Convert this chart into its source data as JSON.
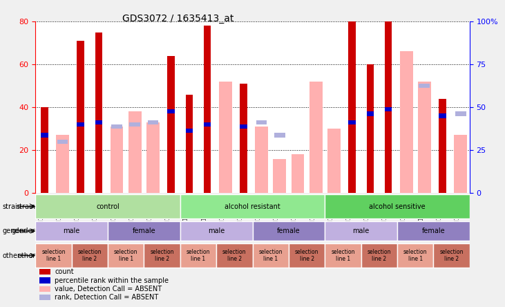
{
  "title": "GDS3072 / 1635413_at",
  "samples": [
    "GSM183815",
    "GSM183816",
    "GSM183990",
    "GSM183991",
    "GSM183817",
    "GSM183856",
    "GSM183992",
    "GSM183993",
    "GSM183887",
    "GSM183888",
    "GSM184121",
    "GSM184122",
    "GSM183936",
    "GSM183989",
    "GSM184123",
    "GSM184124",
    "GSM183857",
    "GSM183858",
    "GSM183994",
    "GSM184118",
    "GSM183875",
    "GSM183886",
    "GSM184119",
    "GSM184120"
  ],
  "count": [
    40,
    0,
    71,
    75,
    0,
    0,
    0,
    64,
    46,
    78,
    0,
    51,
    0,
    0,
    0,
    0,
    0,
    80,
    60,
    83,
    0,
    0,
    44,
    0
  ],
  "rank": [
    27,
    0,
    32,
    33,
    0,
    0,
    0,
    38,
    29,
    32,
    0,
    31,
    0,
    0,
    0,
    0,
    0,
    33,
    37,
    39,
    0,
    0,
    36,
    0
  ],
  "value_absent": [
    0,
    27,
    0,
    0,
    31,
    38,
    33,
    0,
    0,
    0,
    52,
    0,
    31,
    16,
    18,
    52,
    30,
    0,
    0,
    0,
    66,
    52,
    0,
    27
  ],
  "rank_absent": [
    0,
    24,
    0,
    0,
    31,
    32,
    33,
    0,
    0,
    0,
    0,
    0,
    33,
    27,
    0,
    0,
    0,
    0,
    0,
    0,
    0,
    50,
    0,
    37
  ],
  "strain_groups": [
    {
      "label": "control",
      "start": 0,
      "end": 7,
      "color": "#b0e0a0"
    },
    {
      "label": "alcohol resistant",
      "start": 8,
      "end": 15,
      "color": "#90e890"
    },
    {
      "label": "alcohol sensitive",
      "start": 16,
      "end": 23,
      "color": "#60d060"
    }
  ],
  "gender_groups": [
    {
      "label": "male",
      "start": 0,
      "end": 3,
      "color": "#c0b0e0"
    },
    {
      "label": "female",
      "start": 4,
      "end": 7,
      "color": "#9080c0"
    },
    {
      "label": "male",
      "start": 8,
      "end": 11,
      "color": "#c0b0e0"
    },
    {
      "label": "female",
      "start": 12,
      "end": 15,
      "color": "#9080c0"
    },
    {
      "label": "male",
      "start": 16,
      "end": 19,
      "color": "#c0b0e0"
    },
    {
      "label": "female",
      "start": 20,
      "end": 23,
      "color": "#9080c0"
    }
  ],
  "other_groups": [
    {
      "label": "selection\nline 1",
      "start": 0,
      "end": 1,
      "color": "#e8a090"
    },
    {
      "label": "selection\nline 2",
      "start": 2,
      "end": 3,
      "color": "#c87060"
    },
    {
      "label": "selection\nline 1",
      "start": 4,
      "end": 5,
      "color": "#e8a090"
    },
    {
      "label": "selection\nline 2",
      "start": 6,
      "end": 7,
      "color": "#c87060"
    },
    {
      "label": "selection\nline 1",
      "start": 8,
      "end": 9,
      "color": "#e8a090"
    },
    {
      "label": "selection\nline 2",
      "start": 10,
      "end": 11,
      "color": "#c87060"
    },
    {
      "label": "selection\nline 1",
      "start": 12,
      "end": 13,
      "color": "#e8a090"
    },
    {
      "label": "selection\nline 2",
      "start": 14,
      "end": 15,
      "color": "#c87060"
    },
    {
      "label": "selection\nline 1",
      "start": 16,
      "end": 17,
      "color": "#e8a090"
    },
    {
      "label": "selection\nline 2",
      "start": 18,
      "end": 19,
      "color": "#c87060"
    },
    {
      "label": "selection\nline 1",
      "start": 20,
      "end": 21,
      "color": "#e8a090"
    },
    {
      "label": "selection\nline 2",
      "start": 22,
      "end": 23,
      "color": "#c87060"
    }
  ],
  "ylim": [
    0,
    80
  ],
  "yticks": [
    0,
    20,
    40,
    60,
    80
  ],
  "y2ticks": [
    0,
    25,
    50,
    75,
    100
  ],
  "y2labels": [
    "0",
    "25",
    "50",
    "75",
    "100%"
  ],
  "bar_width": 0.4,
  "count_color": "#cc0000",
  "rank_color": "#0000cc",
  "value_absent_color": "#ffb0b0",
  "rank_absent_color": "#b0b0dd",
  "bg_color": "#f0f0f0",
  "plot_bg": "#ffffff"
}
